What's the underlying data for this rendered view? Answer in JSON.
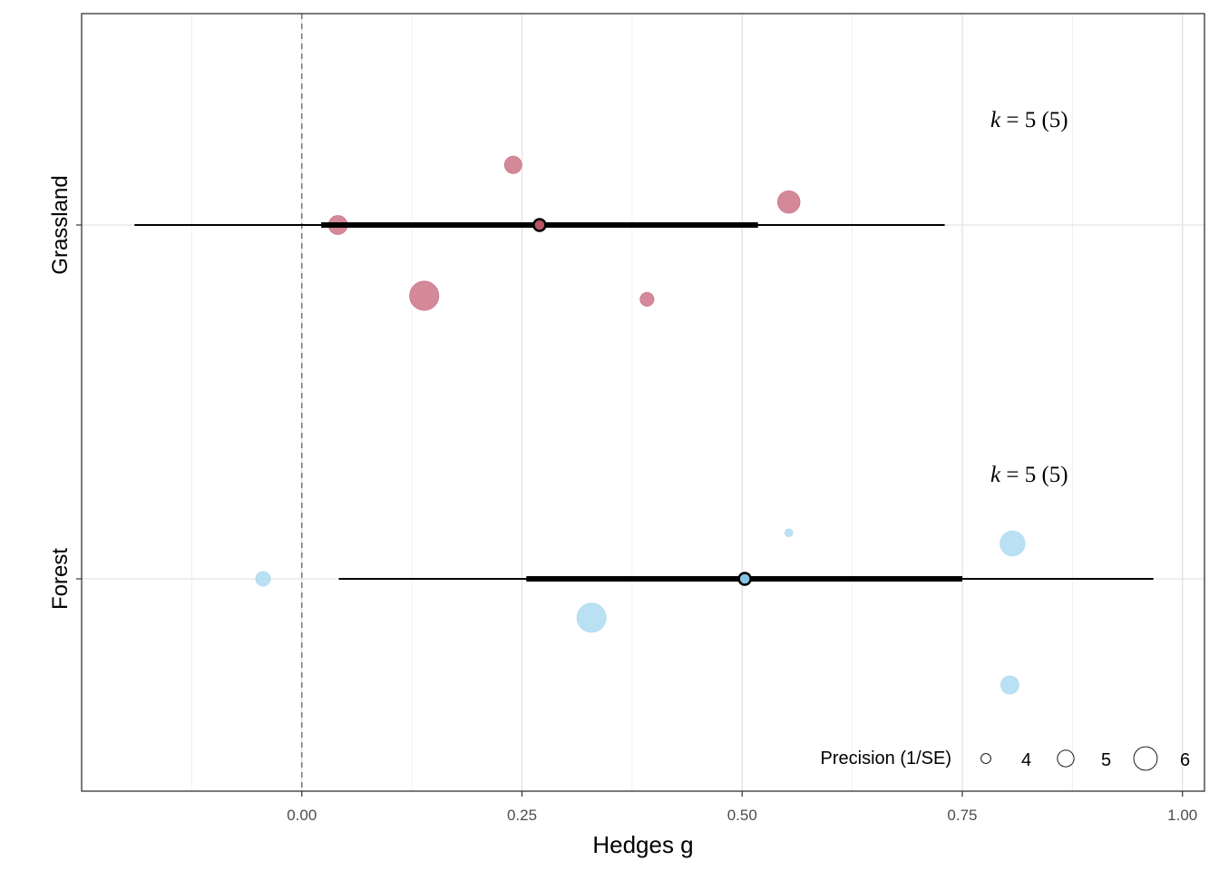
{
  "chart_data": {
    "type": "scatter",
    "xlabel": "Hedges g",
    "ylabel": "",
    "xlim": [
      -0.25,
      1.025
    ],
    "xticks": [
      0.0,
      0.25,
      0.5,
      0.75,
      1.0
    ],
    "xtick_labels": [
      "0.00",
      "0.25",
      "0.50",
      "0.75",
      "1.00"
    ],
    "grid": true,
    "reference_line": {
      "x": 0,
      "style": "dashed"
    },
    "precision_domain": [
      3.2,
      6.6
    ],
    "groups": [
      {
        "name": "Grassland",
        "color": "#c96b7f",
        "summary_fill": "#b85465",
        "estimate": 0.27,
        "ci": [
          0.022,
          0.518
        ],
        "pi": [
          -0.19,
          0.73
        ],
        "k_label": {
          "prefix": "k",
          "text": " = 5 (5)"
        },
        "points": [
          {
            "g": 0.24,
            "offset": 0.17,
            "precision": 4.6
          },
          {
            "g": 0.553,
            "offset": 0.065,
            "precision": 5.2
          },
          {
            "g": 0.041,
            "offset": 0.0,
            "precision": 4.8
          },
          {
            "g": 0.139,
            "offset": -0.2,
            "precision": 6.0
          },
          {
            "g": 0.392,
            "offset": -0.21,
            "precision": 4.2
          }
        ]
      },
      {
        "name": "Forest",
        "color": "#a9d8f0",
        "summary_fill": "#87c4e4",
        "estimate": 0.503,
        "ci": [
          0.255,
          0.75
        ],
        "pi": [
          0.042,
          0.967
        ],
        "k_label": {
          "prefix": "k",
          "text": " = 5 (5)"
        },
        "points": [
          {
            "g": 0.553,
            "offset": 0.13,
            "precision": 3.5
          },
          {
            "g": 0.807,
            "offset": 0.1,
            "precision": 5.5
          },
          {
            "g": -0.044,
            "offset": 0.0,
            "precision": 4.3
          },
          {
            "g": 0.329,
            "offset": -0.11,
            "precision": 6.0
          },
          {
            "g": 0.804,
            "offset": -0.3,
            "precision": 4.7
          }
        ]
      }
    ],
    "legend": {
      "title": "Precision (1/SE)",
      "position": "bottom-right",
      "values": [
        4,
        5,
        6
      ],
      "labels": [
        "4",
        "5",
        "6"
      ]
    }
  }
}
